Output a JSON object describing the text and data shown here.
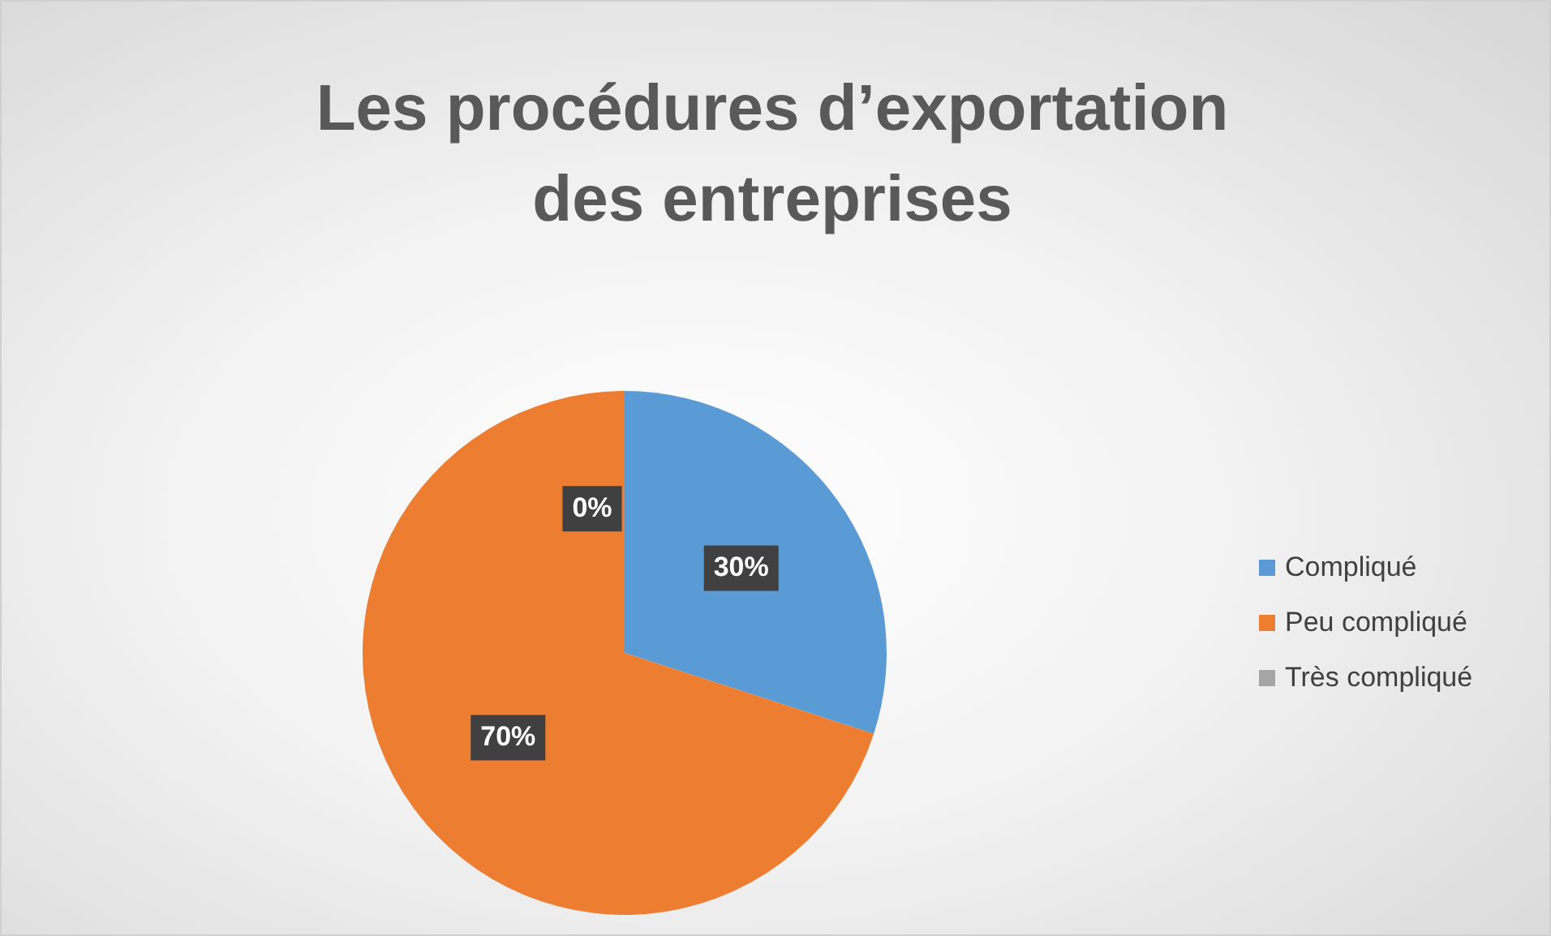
{
  "chart_data": {
    "type": "pie",
    "title": "Les procédures d’exportation des entreprises",
    "categories": [
      "Compliqué",
      "Peu compliqué",
      "Très compliqué"
    ],
    "values": [
      30,
      70,
      0
    ],
    "value_labels": [
      "30%",
      "70%",
      "0%"
    ],
    "colors": [
      "#5b9bd5",
      "#ed7d31",
      "#a5a5a5"
    ],
    "legend": "right"
  }
}
